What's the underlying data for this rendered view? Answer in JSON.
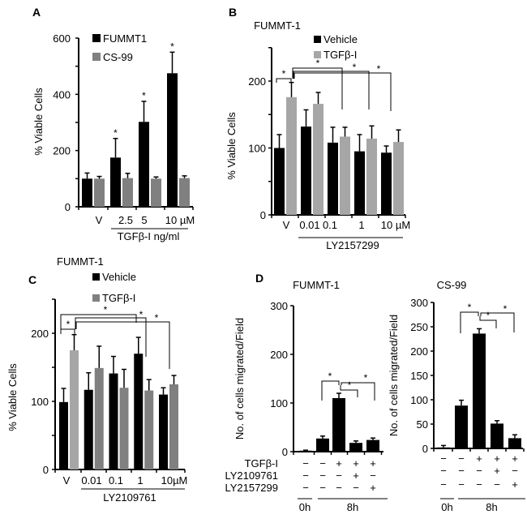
{
  "sig_marker": "*",
  "chart_data": [
    {
      "panel": "A",
      "type": "bar",
      "ylabel": "% Viable Cells",
      "ylim": [
        0,
        600
      ],
      "yticks": [
        "0",
        "200",
        "400",
        "600"
      ],
      "categories": [
        "V",
        "2.5",
        "5",
        "10 µM"
      ],
      "group_label": "TGFβ-I  ng/ml",
      "legend_placement": "top-left",
      "series": [
        {
          "name": "FUMMT1",
          "color": "#000000",
          "values": [
            100,
            175,
            302,
            475
          ],
          "errors": [
            20,
            68,
            73,
            75
          ],
          "significant": [
            false,
            true,
            true,
            true
          ]
        },
        {
          "name": "CS-99",
          "color": "#808080",
          "values": [
            100,
            102,
            100,
            102
          ],
          "errors": [
            8,
            17,
            6,
            8
          ]
        }
      ]
    },
    {
      "panel": "B",
      "type": "bar",
      "title": "FUMMT-1",
      "ylabel": "% Viable Cells",
      "ylim": [
        0,
        250
      ],
      "yticks": [
        "0",
        "100",
        "200"
      ],
      "categories": [
        "V",
        "0.01",
        "0.1",
        "1",
        "10 µM"
      ],
      "group_label": "LY2157299",
      "legend_placement": "top",
      "series": [
        {
          "name": "Vehicle",
          "color": "#000000",
          "values": [
            100,
            132,
            108,
            95,
            93
          ],
          "errors": [
            20,
            25,
            23,
            25,
            10
          ]
        },
        {
          "name": "TGFβ-I",
          "color": "#a6a6a6",
          "values": [
            176,
            166,
            117,
            114,
            109
          ],
          "errors": [
            22,
            17,
            14,
            19,
            18
          ]
        }
      ]
    },
    {
      "panel": "C",
      "type": "bar",
      "title": "FUMMT-1",
      "ylabel": "% Viable Cells",
      "ylim": [
        0,
        250
      ],
      "yticks": [
        "0",
        "100",
        "200"
      ],
      "categories": [
        "V",
        "0.01",
        "0.1",
        "1",
        "10µM"
      ],
      "group_label": "LY2109761",
      "legend_placement": "top",
      "series": [
        {
          "name": "Vehicle",
          "color": "#000000",
          "values": [
            99,
            117,
            141,
            170,
            110
          ],
          "errors": [
            20,
            25,
            25,
            24,
            10
          ]
        },
        {
          "name": "TGFβ-I",
          "color": "#808080",
          "values": [
            175,
            149,
            120,
            116,
            125
          ],
          "errors": [
            23,
            32,
            27,
            16,
            13
          ]
        }
      ]
    },
    {
      "panel": "D",
      "type": "bar",
      "title": "FUMMT-1",
      "ylabel": "No. of cells  migrated/Field",
      "ylim": [
        0,
        300
      ],
      "yticks": [
        "0",
        "100",
        "200",
        "300"
      ],
      "values": [
        2,
        27,
        110,
        18,
        24
      ],
      "errors": [
        1,
        5,
        10,
        4,
        4
      ],
      "color": "#000000",
      "conditions": [
        {
          "name": "TGFβ-I",
          "signs": [
            "−",
            "−",
            "+",
            "+",
            "+"
          ]
        },
        {
          "name": "LY2109761",
          "signs": [
            "−",
            "−",
            "−",
            "+",
            "−"
          ]
        },
        {
          "name": "LY2157299",
          "signs": [
            "−",
            "−",
            "−",
            "−",
            "+"
          ]
        }
      ],
      "time_labels": [
        "0h",
        "8h"
      ]
    },
    {
      "panel": "D",
      "type": "bar",
      "title": "CS-99",
      "ylabel": "No. of cells  migrated/Field",
      "ylim": [
        0,
        300
      ],
      "yticks": [
        "0",
        "50",
        "100",
        "150",
        "200",
        "250",
        "300"
      ],
      "values": [
        2,
        88,
        236,
        51,
        21
      ],
      "errors": [
        4,
        11,
        10,
        6,
        7
      ],
      "color": "#000000",
      "conditions": [
        {
          "signs": [
            "−",
            "−",
            "+",
            "+",
            "+"
          ]
        },
        {
          "signs": [
            "−",
            "−",
            "−",
            "+",
            "−"
          ]
        },
        {
          "signs": [
            "−",
            "−",
            "−",
            "−",
            "+"
          ]
        }
      ],
      "time_labels": [
        "0h",
        "8h"
      ]
    }
  ]
}
